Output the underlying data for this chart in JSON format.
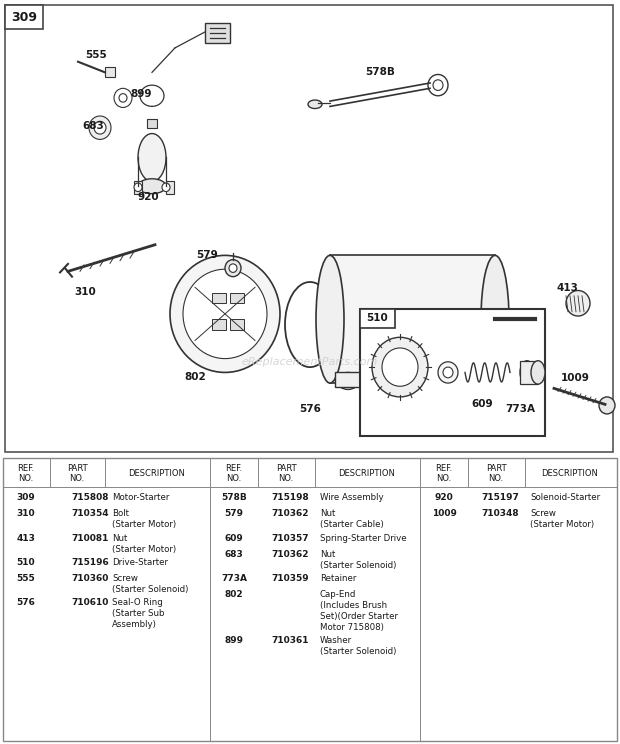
{
  "bg_color": "#ffffff",
  "title_box_label": "309",
  "watermark": "eReplacementParts.com",
  "col1_parts": [
    {
      "ref": "309",
      "part": "715808",
      "desc": [
        "Motor-Starter"
      ]
    },
    {
      "ref": "310",
      "part": "710354",
      "desc": [
        "Bolt",
        "(Starter Motor)"
      ]
    },
    {
      "ref": "413",
      "part": "710081",
      "desc": [
        "Nut",
        "(Starter Motor)"
      ]
    },
    {
      "ref": "510",
      "part": "715196",
      "desc": [
        "Drive-Starter"
      ]
    },
    {
      "ref": "555",
      "part": "710360",
      "desc": [
        "Screw",
        "(Starter Solenoid)"
      ]
    },
    {
      "ref": "576",
      "part": "710610",
      "desc": [
        "Seal-O Ring",
        "(Starter Sub",
        "Assembly)"
      ]
    }
  ],
  "col2_parts": [
    {
      "ref": "578B",
      "part": "715198",
      "desc": [
        "Wire Assembly"
      ]
    },
    {
      "ref": "579",
      "part": "710362",
      "desc": [
        "Nut",
        "(Starter Cable)"
      ]
    },
    {
      "ref": "609",
      "part": "710357",
      "desc": [
        "Spring-Starter Drive"
      ]
    },
    {
      "ref": "683",
      "part": "710362",
      "desc": [
        "Nut",
        "(Starter Solenoid)"
      ]
    },
    {
      "ref": "773A",
      "part": "710359",
      "desc": [
        "Retainer"
      ]
    },
    {
      "ref": "802",
      "part": "",
      "desc": [
        "Cap-End",
        "(Includes Brush",
        "Set)(Order Starter",
        "Motor 715808)"
      ]
    },
    {
      "ref": "899",
      "part": "710361",
      "desc": [
        "Washer",
        "(Starter Solenoid)"
      ]
    }
  ],
  "col3_parts": [
    {
      "ref": "920",
      "part": "715197",
      "desc": [
        "Solenoid-Starter"
      ]
    },
    {
      "ref": "1009",
      "part": "710348",
      "desc": [
        "Screw",
        "(Starter Motor)"
      ]
    }
  ],
  "lc": "#333333",
  "fc": "#ffffff",
  "tc": "#1a1a1a"
}
